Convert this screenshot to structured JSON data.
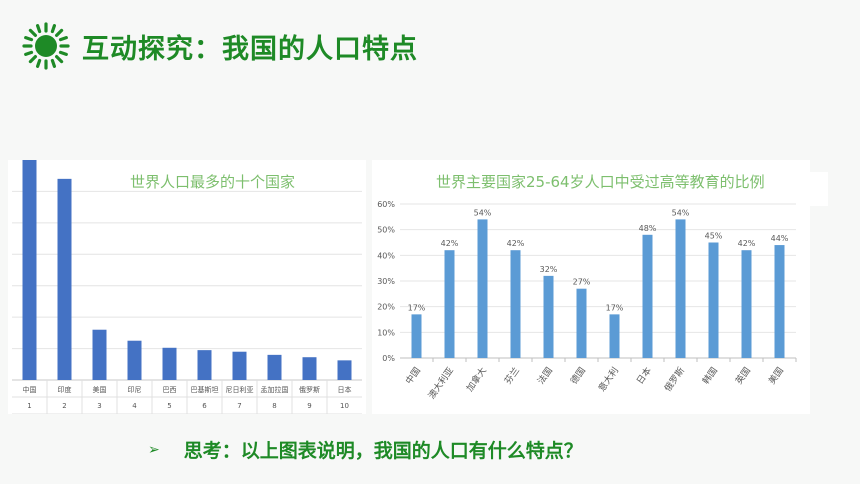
{
  "title": "互动探究：我国的人口特点",
  "footer": {
    "bullet": "➢",
    "question": "思考：以上图表说明，我国的人口有什么特点？"
  },
  "icons": {
    "sun": "sun-icon",
    "bullet": "arrow-bullet-icon"
  },
  "colors": {
    "brand_green": "#1e8a26",
    "chart1_bar": "#4472c4",
    "chart2_bar": "#5b9bd5"
  },
  "chart_data": [
    {
      "type": "bar",
      "title": "世界人口最多的十个国家",
      "categories": [
        "中国",
        "印度",
        "美国",
        "印尼",
        "巴西",
        "巴基斯坦",
        "尼日利亚",
        "孟加拉国",
        "俄罗斯",
        "日本"
      ],
      "ranks": [
        "1",
        "2",
        "3",
        "4",
        "5",
        "6",
        "7",
        "8",
        "9",
        "10"
      ],
      "values": [
        1400,
        1280,
        320,
        250,
        205,
        190,
        180,
        160,
        145,
        125
      ],
      "grid": true,
      "ytick_labels_visible": false
    },
    {
      "type": "bar",
      "title": "世界主要国家25-64岁人口中受过高等教育的比例",
      "categories": [
        "中国",
        "澳大利亚",
        "加拿大",
        "芬兰",
        "法国",
        "德国",
        "意大利",
        "日本",
        "俄罗斯",
        "韩国",
        "英国",
        "美国"
      ],
      "values": [
        17,
        42,
        54,
        42,
        32,
        27,
        17,
        48,
        54,
        45,
        42,
        44
      ],
      "value_labels": [
        "17%",
        "42%",
        "54%",
        "42%",
        "32%",
        "27%",
        "17%",
        "48%",
        "54%",
        "45%",
        "42%",
        "44%"
      ],
      "yticks": [
        "0%",
        "10%",
        "20%",
        "30%",
        "40%",
        "50%",
        "60%"
      ],
      "ylim": [
        0,
        60
      ],
      "grid": true
    }
  ]
}
